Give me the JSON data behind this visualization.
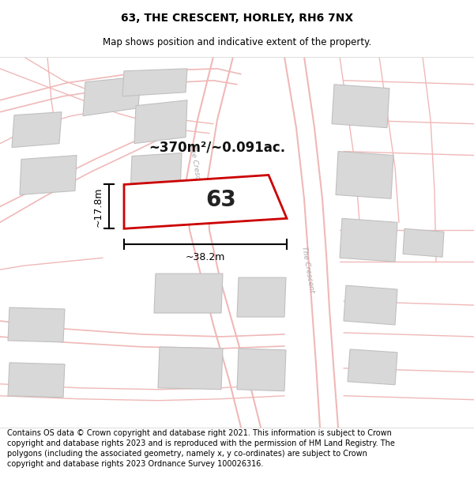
{
  "title_line1": "63, THE CRESCENT, HORLEY, RH6 7NX",
  "title_line2": "Map shows position and indicative extent of the property.",
  "footer_text": "Contains OS data © Crown copyright and database right 2021. This information is subject to Crown copyright and database rights 2023 and is reproduced with the permission of HM Land Registry. The polygons (including the associated geometry, namely x, y co-ordinates) are subject to Crown copyright and database rights 2023 Ordnance Survey 100026316.",
  "area_text": "~370m²/~0.091ac.",
  "label_63": "63",
  "dim_width": "~38.2m",
  "dim_height": "~17.8m",
  "map_bg": "#ffffff",
  "plot_fill": "#ffffff",
  "plot_edge": "#cc0000",
  "road_line_color": "#f0b8b8",
  "road_fill_color": "#f5e8e8",
  "building_fill": "#d8d8d8",
  "building_edge": "#c0c0c0",
  "road_label_color": "#aaaaaa",
  "title_fontsize": 10,
  "subtitle_fontsize": 8.5,
  "footer_fontsize": 7
}
